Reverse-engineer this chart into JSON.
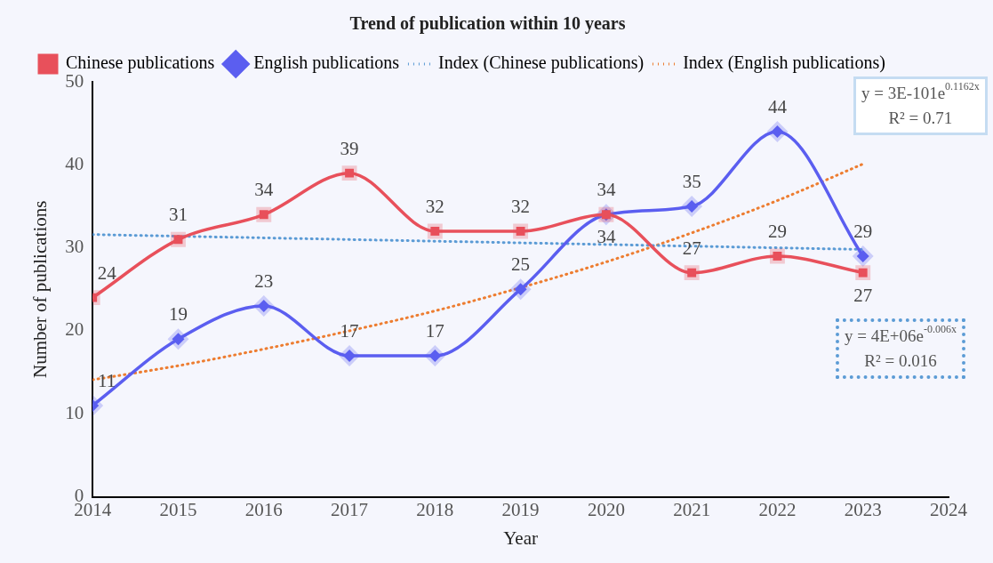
{
  "chart_data": {
    "type": "line",
    "title": "Trend of publication within 10 years",
    "xlabel": "Year",
    "ylabel": "Number of publications",
    "x": [
      2014,
      2015,
      2016,
      2017,
      2018,
      2019,
      2020,
      2021,
      2022,
      2023
    ],
    "series": [
      {
        "name": "Chinese publications",
        "color": "#e8505b",
        "marker": "square",
        "values": [
          24,
          31,
          34,
          39,
          32,
          32,
          34,
          27,
          29,
          27
        ]
      },
      {
        "name": "English publications",
        "color": "#5b5ef0",
        "marker": "diamond",
        "values": [
          11,
          19,
          23,
          17,
          17,
          25,
          34,
          35,
          44,
          29
        ]
      },
      {
        "name": "Index (Chinese publications)",
        "color": "#5b9bd5",
        "marker": "none",
        "line_style": "dotted",
        "data_labels": false,
        "x": [
          2014,
          2023
        ],
        "values": [
          31.6,
          29.8
        ]
      },
      {
        "name": "Index (English publications)",
        "color": "#ed7d31",
        "marker": "none",
        "line_style": "dotted",
        "data_labels": false,
        "x": [
          2014,
          2015,
          2016,
          2017,
          2018,
          2019,
          2020,
          2021,
          2022,
          2023
        ],
        "values": [
          14.1,
          15.8,
          17.8,
          20.0,
          22.4,
          25.2,
          28.3,
          31.8,
          35.7,
          40.1
        ]
      }
    ],
    "xlim": [
      2014,
      2024
    ],
    "xticks": [
      2014,
      2015,
      2016,
      2017,
      2018,
      2019,
      2020,
      2021,
      2022,
      2023,
      2024
    ],
    "ylim": [
      0,
      50
    ],
    "yticks": [
      0,
      10,
      20,
      30,
      40,
      50
    ],
    "grid": false,
    "legend": "top left",
    "data_labels": true,
    "annotations": [
      "y = 3E-101e$^{0.1162x}$\nR² = 0.71",
      "y = 4E+06e$^{-0.006x}$\nR² = 0.016"
    ]
  }
}
